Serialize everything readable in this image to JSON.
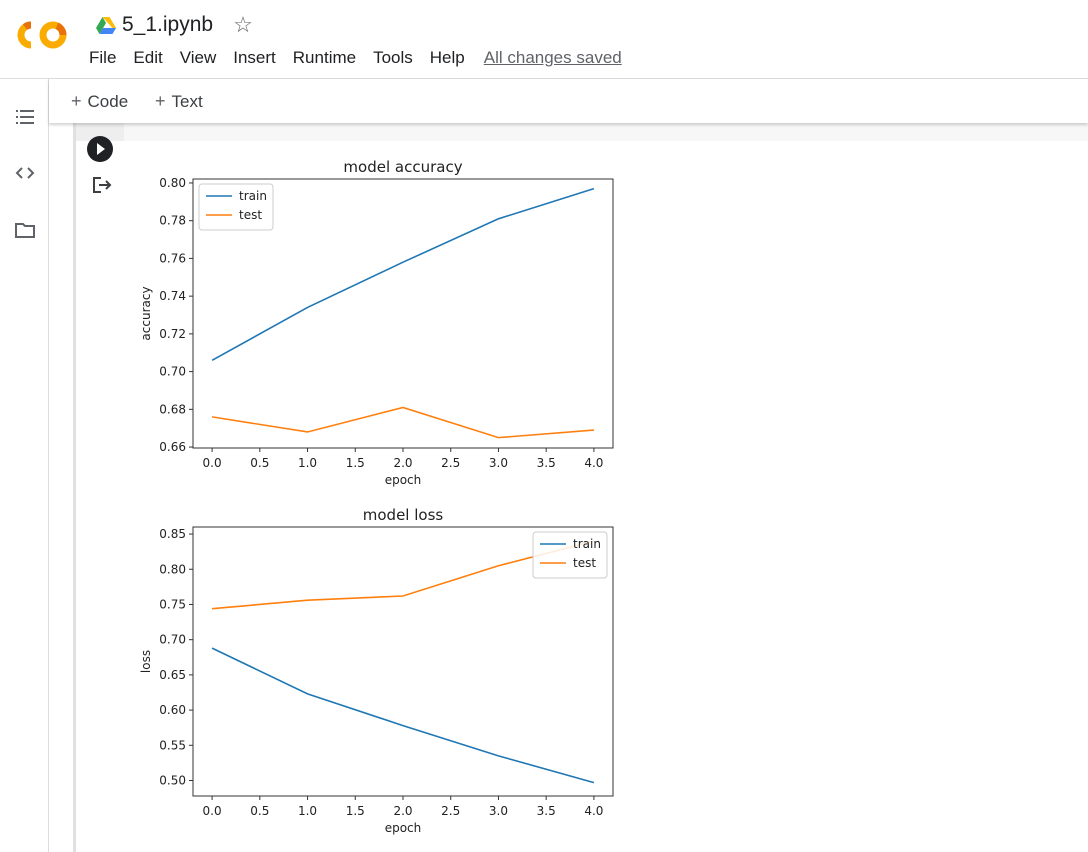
{
  "app": {
    "logo": "CO",
    "notebook_name": "5_1.ipynb"
  },
  "menu": {
    "items": [
      "File",
      "Edit",
      "View",
      "Insert",
      "Runtime",
      "Tools",
      "Help"
    ],
    "status": "All changes saved"
  },
  "toolbar": {
    "code_label": "Code",
    "text_label": "Text"
  },
  "icons": {
    "toc": "table-of-contents-icon",
    "code_snippets": "code-icon",
    "files": "folder-icon",
    "run": "play-icon",
    "output": "output-icon",
    "star": "star-icon",
    "drive": "drive-icon"
  },
  "chart_data": [
    {
      "type": "line",
      "title": "model accuracy",
      "xlabel": "epoch",
      "ylabel": "accuracy",
      "x": [
        0,
        1,
        2,
        3,
        4
      ],
      "series": [
        {
          "name": "train",
          "color": "#1f77b4",
          "values": [
            0.706,
            0.734,
            0.758,
            0.781,
            0.797
          ]
        },
        {
          "name": "test",
          "color": "#ff7f0e",
          "values": [
            0.676,
            0.668,
            0.681,
            0.665,
            0.669
          ]
        }
      ],
      "xlim": [
        -0.2,
        4.2
      ],
      "ylim": [
        0.6595,
        0.8021
      ],
      "xticks": [
        "0.0",
        "0.5",
        "1.0",
        "1.5",
        "2.0",
        "2.5",
        "3.0",
        "3.5",
        "4.0"
      ],
      "yticks": [
        "0.66",
        "0.68",
        "0.70",
        "0.72",
        "0.74",
        "0.76",
        "0.78",
        "0.80"
      ],
      "legend": "upper left"
    },
    {
      "type": "line",
      "title": "model loss",
      "xlabel": "epoch",
      "ylabel": "loss",
      "x": [
        0,
        1,
        2,
        3,
        4
      ],
      "series": [
        {
          "name": "train",
          "color": "#1f77b4",
          "values": [
            0.688,
            0.623,
            0.578,
            0.535,
            0.497
          ]
        },
        {
          "name": "test",
          "color": "#ff7f0e",
          "values": [
            0.744,
            0.756,
            0.762,
            0.805,
            0.84
          ]
        }
      ],
      "xlim": [
        -0.2,
        4.2
      ],
      "ylim": [
        0.478,
        0.86
      ],
      "xticks": [
        "0.0",
        "0.5",
        "1.0",
        "1.5",
        "2.0",
        "2.5",
        "3.0",
        "3.5",
        "4.0"
      ],
      "yticks": [
        "0.50",
        "0.55",
        "0.60",
        "0.65",
        "0.70",
        "0.75",
        "0.80",
        "0.85"
      ],
      "legend": "upper right"
    }
  ]
}
